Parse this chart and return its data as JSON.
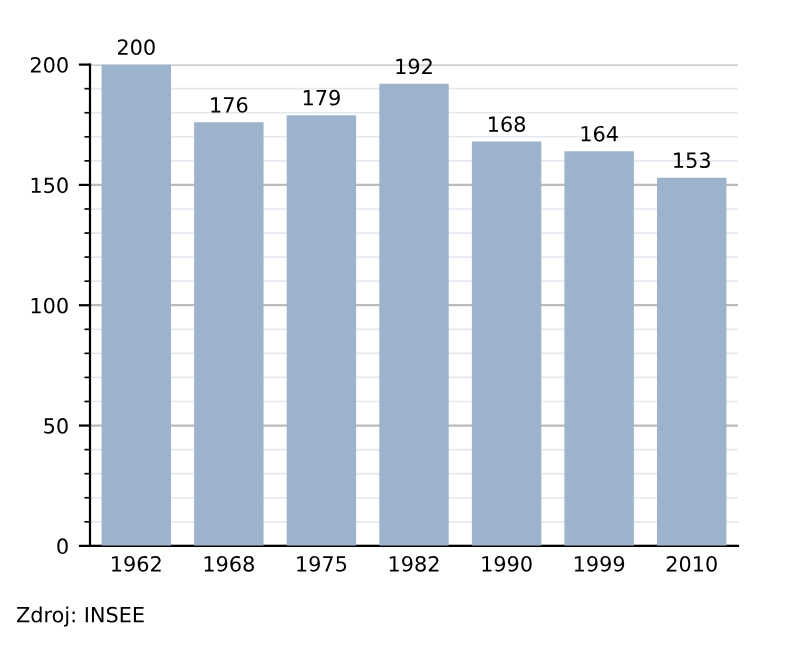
{
  "chart_data": {
    "type": "bar",
    "categories": [
      "1962",
      "1968",
      "1975",
      "1982",
      "1990",
      "1999",
      "2010"
    ],
    "values": [
      200,
      176,
      179,
      192,
      168,
      164,
      153
    ],
    "color": "#9db3cc",
    "ylim": [
      0,
      200
    ],
    "yticks": [
      0,
      50,
      100,
      150,
      200
    ],
    "grid": "y",
    "data_labels": true,
    "annotations": [
      "Zdroj: INSEE"
    ]
  }
}
